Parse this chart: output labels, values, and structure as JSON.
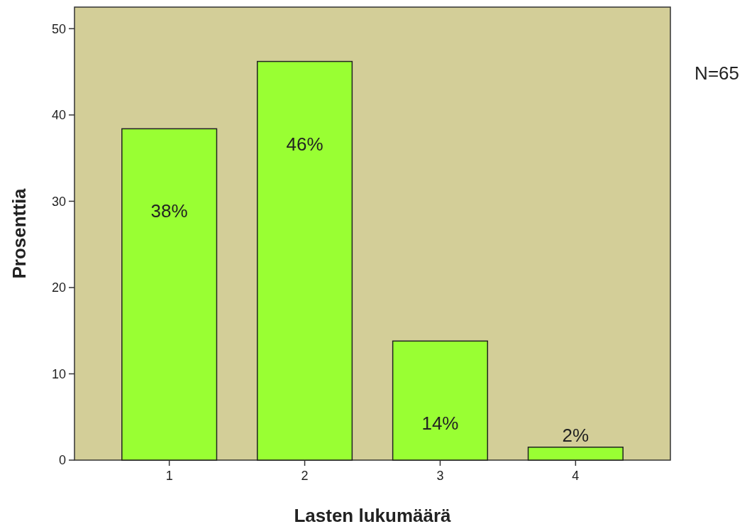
{
  "chart_data": {
    "type": "bar",
    "xlabel": "Lasten lukumäärä",
    "ylabel": "Prosenttia",
    "categories": [
      "1",
      "2",
      "3",
      "4"
    ],
    "values": [
      38.4,
      46.2,
      13.8,
      1.5
    ],
    "value_labels": [
      "38%",
      "46%",
      "14%",
      "2%"
    ],
    "color": "#99ff33",
    "ylim": [
      0,
      52.5
    ],
    "yticks": [
      0,
      10,
      20,
      30,
      40,
      50
    ],
    "annotations": [
      "N=65"
    ]
  }
}
